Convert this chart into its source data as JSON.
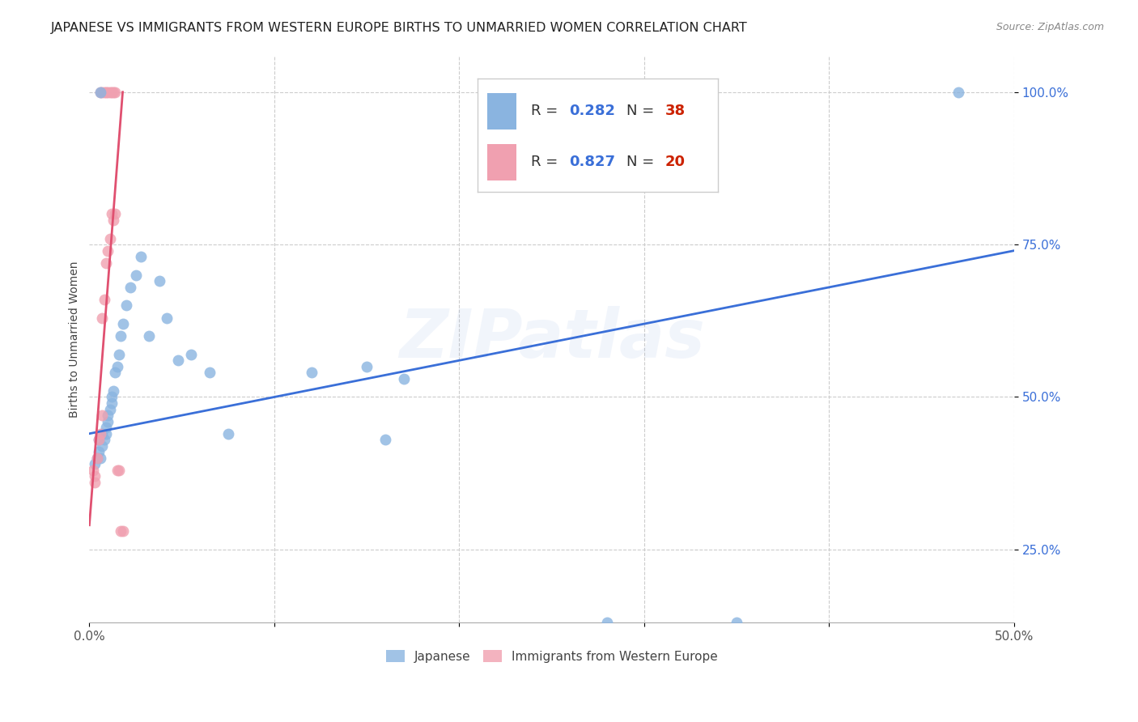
{
  "title": "JAPANESE VS IMMIGRANTS FROM WESTERN EUROPE BIRTHS TO UNMARRIED WOMEN CORRELATION CHART",
  "source": "Source: ZipAtlas.com",
  "ylabel": "Births to Unmarried Women",
  "xlim": [
    0.0,
    0.5
  ],
  "ylim": [
    0.13,
    1.06
  ],
  "xticks": [
    0.0,
    0.1,
    0.2,
    0.3,
    0.4,
    0.5
  ],
  "xtick_labels": [
    "0.0%",
    "",
    "",
    "",
    "",
    "50.0%"
  ],
  "yticks": [
    0.25,
    0.5,
    0.75,
    1.0
  ],
  "ytick_labels": [
    "25.0%",
    "50.0%",
    "75.0%",
    "100.0%"
  ],
  "grid_color": "#cccccc",
  "background_color": "#ffffff",
  "blue_color": "#8ab4e0",
  "pink_color": "#f0a0b0",
  "title_fontsize": 11.5,
  "axis_label_fontsize": 10,
  "tick_fontsize": 11,
  "legend_r1": "R = 0.282",
  "legend_n1": "N = 38",
  "legend_r2": "R = 0.827",
  "legend_n2": "N = 20",
  "watermark": "ZIPatlas",
  "blue_line_color": "#3a6fd8",
  "pink_line_color": "#e05070",
  "blue_scatter_x": [
    0.003,
    0.004,
    0.005,
    0.005,
    0.006,
    0.007,
    0.007,
    0.008,
    0.009,
    0.009,
    0.01,
    0.01,
    0.011,
    0.012,
    0.012,
    0.013,
    0.014,
    0.015,
    0.016,
    0.017,
    0.018,
    0.02,
    0.022,
    0.025,
    0.028,
    0.032,
    0.038,
    0.042,
    0.048,
    0.055,
    0.065,
    0.075,
    0.12,
    0.15,
    0.16,
    0.17,
    0.28,
    0.35
  ],
  "blue_scatter_y": [
    0.39,
    0.4,
    0.41,
    0.43,
    0.4,
    0.42,
    0.44,
    0.43,
    0.44,
    0.45,
    0.46,
    0.47,
    0.48,
    0.49,
    0.5,
    0.51,
    0.54,
    0.55,
    0.57,
    0.6,
    0.62,
    0.65,
    0.68,
    0.7,
    0.73,
    0.6,
    0.69,
    0.63,
    0.56,
    0.57,
    0.54,
    0.44,
    0.54,
    0.55,
    0.43,
    0.53,
    0.13,
    0.13
  ],
  "pink_scatter_x": [
    0.002,
    0.003,
    0.003,
    0.004,
    0.005,
    0.006,
    0.007,
    0.007,
    0.008,
    0.009,
    0.01,
    0.011,
    0.012,
    0.013,
    0.015,
    0.016,
    0.017,
    0.018
  ],
  "pink_scatter_y": [
    0.38,
    0.37,
    0.36,
    0.4,
    0.43,
    0.44,
    0.47,
    0.63,
    0.66,
    0.72,
    0.74,
    0.76,
    0.8,
    0.79,
    0.38,
    0.38,
    0.28,
    0.28
  ],
  "pink_top_x": [
    0.006,
    0.007,
    0.008,
    0.009,
    0.01,
    0.011,
    0.012,
    0.013,
    0.014
  ],
  "pink_top_y": [
    1.0,
    1.0,
    1.0,
    1.0,
    1.0,
    1.0,
    1.0,
    1.0,
    1.0
  ],
  "pink_outlier_x": [
    0.014
  ],
  "pink_outlier_y": [
    0.8
  ],
  "blue_top_x": [
    0.006
  ],
  "blue_top_y": [
    1.0
  ],
  "blue_far_x": [
    0.47
  ],
  "blue_far_y": [
    1.0
  ],
  "blue_line_x": [
    0.0,
    0.5
  ],
  "blue_line_y": [
    0.44,
    0.74
  ],
  "pink_line_x": [
    0.0,
    0.018
  ],
  "pink_line_y": [
    0.29,
    1.0
  ],
  "marker_size": 100,
  "line_width": 2.0
}
